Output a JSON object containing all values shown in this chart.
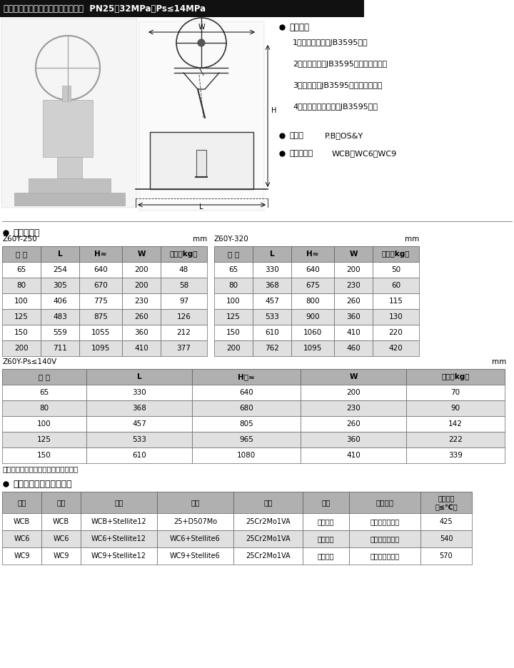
{
  "title": "压力自紧密封阀盖手轮操作铸钢闸阀  PN25、32MPa；Ps≤14MPa",
  "application_title": "应用规范",
  "application_items": [
    "1、设计、制造按JB3595规定",
    "2、结构长度按JB3595规定或用户要求",
    "3、连接端按JB3595规定或用户要求",
    "4、阀门检查和试验按JB3595规定"
  ],
  "structure_label": "结构：",
  "structure_value": "P.B；OS&Y",
  "material_label": "主体材料：",
  "material_value": "WCB、WC6、WC9",
  "size_title": "尺寸和重要",
  "table1_label": "Z60Y-250",
  "table1_unit": "mm",
  "table2_label": "Z60Y-320",
  "table2_unit": "mm",
  "table3_label": "Z60Y-Ps≤140V",
  "table3_unit": "mm",
  "table_header": [
    "规 格",
    "L",
    "H≈",
    "W",
    "重量（kg）"
  ],
  "table1_data": [
    [
      "65",
      "254",
      "640",
      "200",
      "48"
    ],
    [
      "80",
      "305",
      "670",
      "200",
      "58"
    ],
    [
      "100",
      "406",
      "775",
      "230",
      "97"
    ],
    [
      "125",
      "483",
      "875",
      "260",
      "126"
    ],
    [
      "150",
      "559",
      "1055",
      "360",
      "212"
    ],
    [
      "200",
      "711",
      "1095",
      "410",
      "377"
    ]
  ],
  "table2_data": [
    [
      "65",
      "330",
      "640",
      "200",
      "50"
    ],
    [
      "80",
      "368",
      "675",
      "230",
      "60"
    ],
    [
      "100",
      "457",
      "800",
      "260",
      "115"
    ],
    [
      "125",
      "533",
      "900",
      "360",
      "130"
    ],
    [
      "150",
      "610",
      "1060",
      "410",
      "220"
    ],
    [
      "200",
      "762",
      "1095",
      "460",
      "420"
    ]
  ],
  "table3_header": [
    "规 格",
    "L",
    "H开≈",
    "W",
    "重量（kg）"
  ],
  "table3_data": [
    [
      "65",
      "330",
      "640",
      "200",
      "70"
    ],
    [
      "80",
      "368",
      "680",
      "230",
      "90"
    ],
    [
      "100",
      "457",
      "805",
      "260",
      "142"
    ],
    [
      "125",
      "533",
      "965",
      "360",
      "222"
    ],
    [
      "150",
      "610",
      "1080",
      "410",
      "339"
    ]
  ],
  "note": "说明：凡按用要求的须在合同中注明。",
  "parts_title": "主要零件材料及主要用途",
  "parts_header": [
    "阀体",
    "阀盖",
    "阀板",
    "阀座",
    "阀杆",
    "填料",
    "适用介质",
    "适用温度\n（≤℃）"
  ],
  "parts_data": [
    [
      "WCB",
      "WCB",
      "WCB+Stellite12",
      "25+D507Mo",
      "25Cr2Mo1VA",
      "柔性石墨",
      "水、蒸汽、油品",
      "425"
    ],
    [
      "WC6",
      "WC6",
      "WC6+Stellite12",
      "WC6+Stellite6",
      "25Cr2Mo1VA",
      "柔性石墨",
      "水、蒸汽、油品",
      "540"
    ],
    [
      "WC9",
      "WC9",
      "WC9+Stellite12",
      "WC9+Stellite6",
      "25Cr2Mo1VA",
      "柔性石墨",
      "水、蒸汽、油品",
      "570"
    ]
  ],
  "header_bg": "#b0b0b0",
  "row_alt_bg": "#e0e0e0",
  "row_white_bg": "#ffffff",
  "border_color": "#666666",
  "title_bg": "#1a1a1a",
  "title_color": "#ffffff"
}
